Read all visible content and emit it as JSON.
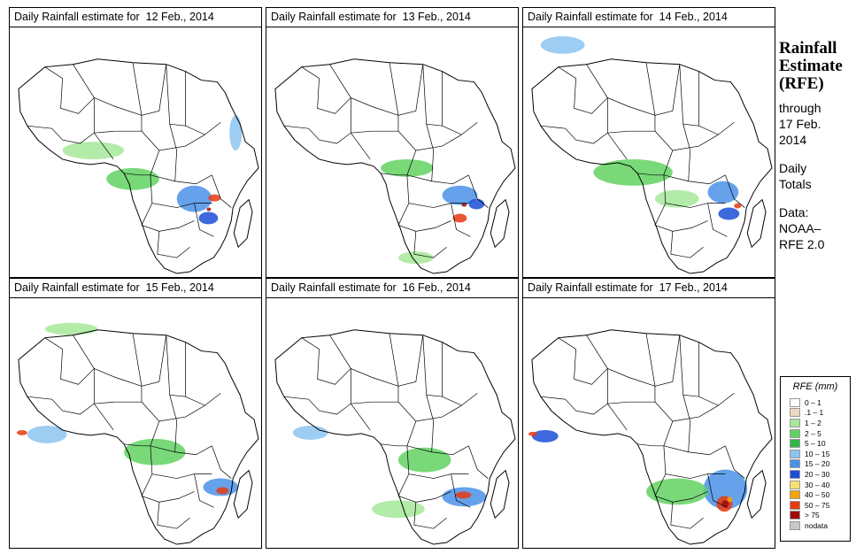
{
  "panels": [
    {
      "title": "Daily Rainfall estimate for  12 Feb., 2014",
      "map_name": "Africa rainfall map 12 Feb 2014"
    },
    {
      "title": "Daily Rainfall estimate for  13 Feb., 2014",
      "map_name": "Africa rainfall map 13 Feb 2014"
    },
    {
      "title": "Daily Rainfall estimate for  14 Feb., 2014",
      "map_name": "Africa rainfall map 14 Feb 2014"
    },
    {
      "title": "Daily Rainfall estimate for  15 Feb., 2014",
      "map_name": "Africa rainfall map 15 Feb 2014"
    },
    {
      "title": "Daily Rainfall estimate for  16 Feb., 2014",
      "map_name": "Africa rainfall map 16 Feb 2014"
    },
    {
      "title": "Daily Rainfall estimate for  17 Feb., 2014",
      "map_name": "Africa rainfall map 17 Feb 2014"
    }
  ],
  "side": {
    "title_line1": "Rainfall",
    "title_line2": "Estimate",
    "title_line3": "(RFE)",
    "through": "through",
    "date_line1": "17 Feb.",
    "date_line2": "2014",
    "daily": "Daily",
    "totals": "Totals",
    "data_label": "Data:",
    "source_line1": "NOAA–",
    "source_line2": "RFE 2.0"
  },
  "legend": {
    "title": "RFE (mm)",
    "items": [
      {
        "label": "0 – 1",
        "color": "#ffffff"
      },
      {
        "label": ".1 – 1",
        "color": "#ecd7c0"
      },
      {
        "label": "1 – 2",
        "color": "#a6e89a"
      },
      {
        "label": "2 – 5",
        "color": "#61d261"
      },
      {
        "label": "5 – 10",
        "color": "#2eb844"
      },
      {
        "label": "10 – 15",
        "color": "#8cc4f0"
      },
      {
        "label": "15 – 20",
        "color": "#4a92e8"
      },
      {
        "label": "20 – 30",
        "color": "#1c4fd6"
      },
      {
        "label": "30 – 40",
        "color": "#f5e070"
      },
      {
        "label": "40 – 50",
        "color": "#f5a500"
      },
      {
        "label": "50 – 75",
        "color": "#e83a10"
      },
      {
        "label": "> 75",
        "color": "#a00a0a"
      },
      {
        "label": "nodata",
        "color": "#c8c8c8"
      }
    ]
  }
}
